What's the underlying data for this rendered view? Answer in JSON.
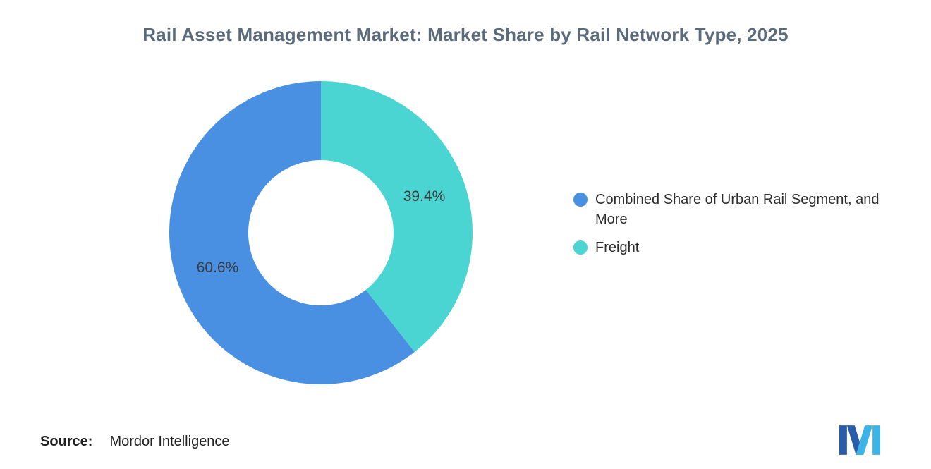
{
  "title": "Rail Asset Management Market: Market Share by Rail Network Type, 2025",
  "chart_data": {
    "type": "pie",
    "subtype": "donut",
    "title": "Rail Asset Management Market: Market Share by Rail Network Type, 2025",
    "slices": [
      {
        "label": "Combined Share of Urban Rail Segment, and More",
        "value": 60.6,
        "data_label": "60.6%",
        "color": "#4a90e2"
      },
      {
        "label": "Freight",
        "value": 39.4,
        "data_label": "39.4%",
        "color": "#4bd5d2"
      }
    ],
    "start_angle": 141.84,
    "direction": "clockwise",
    "inner_radius_ratio": 0.48,
    "legend_position": "right",
    "data_label_color": "#3b3b3b",
    "background": "#ffffff"
  },
  "source": {
    "label": "Source:",
    "value": "Mordor Intelligence"
  },
  "logo": {
    "name": "mordor-intelligence-logo",
    "dark_color": "#2a5caa",
    "light_color": "#3cb4e5"
  }
}
